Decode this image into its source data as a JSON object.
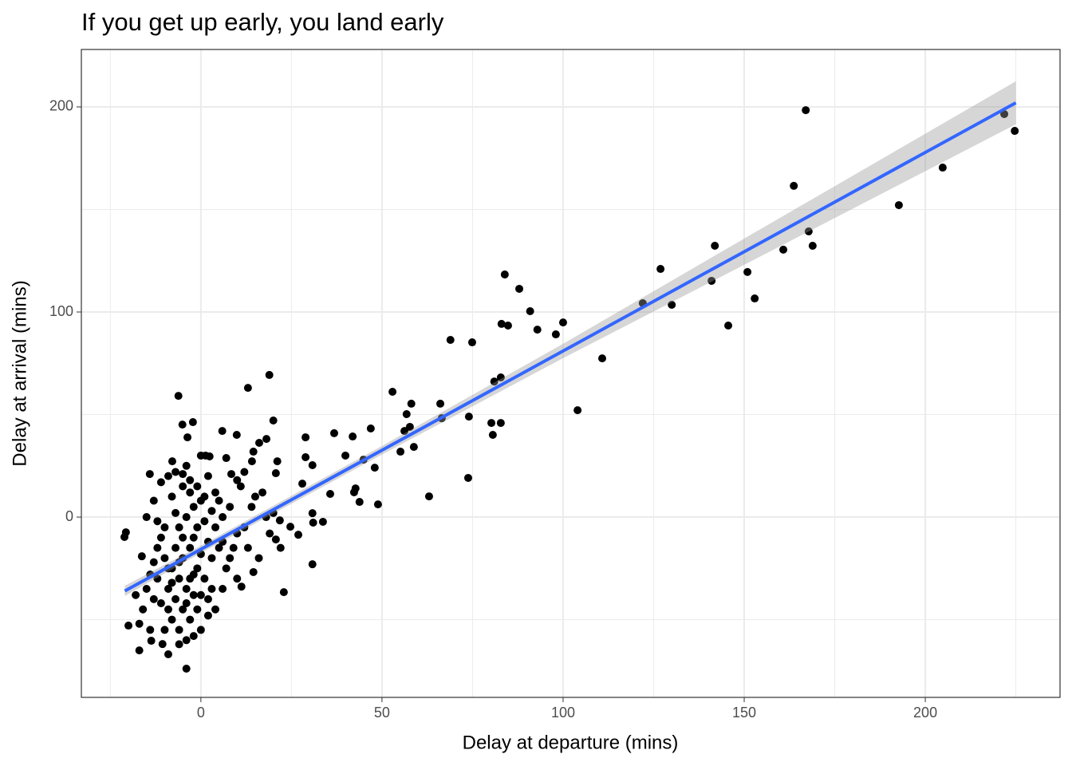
{
  "chart_data": {
    "type": "scatter",
    "title": "If you get up early, you land early",
    "xlabel": "Delay at departure (mins)",
    "ylabel": "Delay at arrival (mins)",
    "xlim": [
      -33,
      237.2
    ],
    "ylim": [
      -87.9,
      228
    ],
    "xticks": [
      0,
      50,
      100,
      150,
      200
    ],
    "yticks": [
      0,
      100,
      200
    ],
    "x_minor_ticks": [
      -25,
      25,
      75,
      125,
      175,
      225
    ],
    "y_minor_ticks": [
      -50,
      50,
      150
    ],
    "grid": true,
    "points": {
      "color": "#000000",
      "x": [
        167,
        221.8,
        224.7,
        204.8,
        192.7,
        163.7,
        167.8,
        168.9,
        141.9,
        160.8,
        126.9,
        150.9,
        141,
        152.9,
        122,
        130,
        145.6,
        110.8,
        104,
        83.9,
        87.9,
        90.9,
        100,
        83,
        84.8,
        92.9,
        98,
        68.9,
        74.9,
        82.8,
        81,
        52.9,
        58.1,
        66.1,
        56.8,
        74,
        66.5,
        80.2,
        82.8,
        57.7,
        56.2,
        46.9,
        80.6,
        36.8,
        41.9,
        28.9,
        58.8,
        55.1,
        39.9,
        44.9,
        28.9,
        48,
        30.8,
        73.8,
        28,
        42.7,
        35.7,
        42.3,
        63,
        43.8,
        48.9,
        30.8,
        31,
        33.7,
        26.9,
        30.8,
        22.9,
        13,
        18.9,
        20,
        5.9,
        9.9,
        18.1,
        16.1,
        14.5,
        -2.2,
        -5.1,
        -3.7,
        -6.2,
        1.3,
        2.4,
        7,
        14.1,
        21.1,
        8.4,
        20.7,
        -7.9,
        -14.1,
        -20.7,
        -21.1,
        -20,
        -17,
        -9,
        -4,
        -13.7,
        -10.6,
        -16.3,
        21.8,
        24.7,
        20.7,
        14.5,
        11.2,
        -5,
        -3,
        -8,
        -2,
        -6,
        -4,
        -10,
        -1,
        0,
        2,
        -7,
        -9,
        -3,
        -5,
        -2,
        1,
        3,
        5,
        -12,
        -11,
        -6,
        -4,
        -2,
        0,
        -8,
        -5,
        -3,
        -7,
        4,
        6,
        8,
        10,
        7,
        9,
        -13,
        -14,
        -10,
        -6,
        -8,
        -4,
        -1,
        2,
        -9,
        -12,
        -15,
        -16,
        -15,
        -13,
        -11,
        -9,
        -7,
        -5,
        -3,
        -1,
        1,
        3,
        5,
        12,
        14,
        11,
        15,
        17,
        13,
        16,
        6,
        4,
        0,
        -2,
        -6,
        -9,
        -7,
        -5,
        -3,
        -1,
        1,
        3,
        -11,
        -13,
        -4,
        -6,
        -8,
        -2,
        0,
        2,
        -10,
        -12,
        18,
        20,
        19,
        22,
        8,
        10,
        6,
        4,
        2,
        -4,
        0,
        10,
        12,
        -17,
        -14,
        -18
      ],
      "y": [
        198.4,
        196.5,
        188.3,
        170.4,
        152.1,
        161.5,
        139.3,
        132.3,
        132.3,
        130.4,
        121,
        119.5,
        115.2,
        106.6,
        104.3,
        103.5,
        93.4,
        77.4,
        52.1,
        118.3,
        111.3,
        100.4,
        94.9,
        94.2,
        93.4,
        91.4,
        89.1,
        86.4,
        85.2,
        68.1,
        66.1,
        61.1,
        55.3,
        55.3,
        50.2,
        49,
        48.2,
        45.9,
        45.9,
        44,
        42,
        43.2,
        40.1,
        40.9,
        39.3,
        38.9,
        34.2,
        31.9,
        30,
        28,
        29.2,
        24.1,
        25.3,
        19.1,
        16.3,
        14,
        11.3,
        12.1,
        10.1,
        7.4,
        6.2,
        1.9,
        -2.7,
        -2.3,
        -8.6,
        -23,
        -36.6,
        63,
        69.3,
        47.1,
        42,
        40.1,
        38.1,
        36.2,
        31.9,
        46.3,
        45.1,
        38.9,
        59.1,
        30,
        29.6,
        28.8,
        27.2,
        27.2,
        21,
        21.4,
        27.2,
        21,
        -7.4,
        -9.7,
        -52.9,
        -65,
        -66.9,
        -73.9,
        -60.3,
        -61.9,
        -19.1,
        -1.6,
        -4.7,
        -10.9,
        -26.8,
        -33.9,
        -20,
        -15,
        -25,
        -10,
        -30,
        -35,
        -20,
        -25,
        -18,
        -12,
        -40,
        -45,
        -50,
        -45,
        -38,
        -30,
        -20,
        -15,
        -30,
        -10,
        -5,
        0,
        5,
        8,
        10,
        15,
        18,
        2,
        -5,
        0,
        5,
        -8,
        -25,
        -15,
        -40,
        -28,
        -55,
        -55,
        -50,
        -60,
        -45,
        -40,
        -35,
        -15,
        -35,
        -45,
        0,
        8,
        17,
        20,
        22,
        21,
        12,
        15,
        10,
        3,
        8,
        -5,
        5,
        15,
        10,
        12,
        -15,
        -20,
        -35,
        -45,
        -55,
        -58,
        -62,
        -25,
        -15,
        -10,
        -30,
        -5,
        -2,
        -35,
        -42,
        -22,
        -42,
        -22,
        -32,
        -28,
        -38,
        -48,
        -5,
        -2,
        0,
        2,
        -8,
        -15,
        -20,
        -30,
        -12,
        12,
        20,
        25,
        30,
        18,
        22,
        -52,
        -55,
        -38
      ]
    },
    "fit": {
      "color": "#3366ff",
      "band_color": "#999999",
      "x": [
        -21,
        0,
        50,
        100,
        150,
        225
      ],
      "y": [
        -36,
        -15.7,
        32.6,
        81,
        129.4,
        202
      ],
      "lower": [
        -38.5,
        -17.5,
        30.5,
        77.5,
        123,
        191.5
      ],
      "upper": [
        -33.5,
        -13.9,
        34.7,
        84.5,
        135.8,
        212.5
      ]
    }
  }
}
